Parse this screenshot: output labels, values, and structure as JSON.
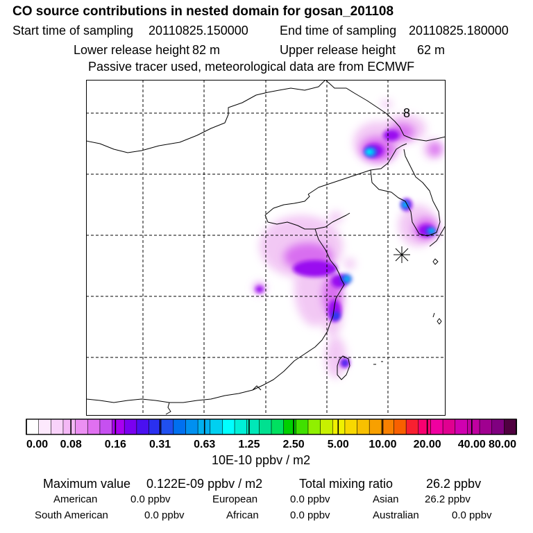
{
  "header": {
    "title": "CO  source contributions in nested domain for gosan_201108",
    "start_label": "Start time of sampling",
    "start_value": "20110825.150000",
    "end_label": "End time of sampling",
    "end_value": "20110825.180000",
    "lower_label": "Lower release height",
    "lower_value": "82 m",
    "upper_label": "Upper release height",
    "upper_value": "62 m",
    "note": "Passive tracer used, meteorological data are from ECMWF"
  },
  "map": {
    "marker_label": "8",
    "station_marker": "asterisk-icon"
  },
  "chart_data": {
    "type": "heatmap",
    "title": "CO  source contributions in nested domain for gosan_201108",
    "colorbar": {
      "ticks": [
        "0.00",
        "0.08",
        "0.16",
        "0.31",
        "0.63",
        "1.25",
        "2.50",
        "5.00",
        "10.00",
        "20.00",
        "40.00",
        "80.00"
      ],
      "units": "10E-10 ppbv / m2",
      "colors": [
        "#ffffff",
        "#fde9fd",
        "#f9d2fa",
        "#f4b8f6",
        "#ec90f3",
        "#e070f0",
        "#c650f0",
        "#a800f0",
        "#7a00f0",
        "#4a10f0",
        "#2a30f0",
        "#2050f0",
        "#0070f0",
        "#0090f0",
        "#00b0f0",
        "#00d0f0",
        "#00ffff",
        "#00f0d8",
        "#00e8b8",
        "#00e090",
        "#00e060",
        "#00d000",
        "#40e000",
        "#90f000",
        "#c8f000",
        "#f0f000",
        "#f8d800",
        "#f8c000",
        "#f8a000",
        "#f88000",
        "#f86000",
        "#f82030",
        "#f80070",
        "#f000a0",
        "#e00090",
        "#d000b0",
        "#c000a0",
        "#a00090",
        "#800080",
        "#500040"
      ]
    },
    "summary": {
      "max_label": "Maximum value",
      "max_value": "0.122E-09 ppbv / m2",
      "total_label": "Total mixing ratio",
      "total_value": "26.2 ppbv"
    },
    "sources": [
      {
        "name": "American",
        "value": "0.0 ppbv"
      },
      {
        "name": "European",
        "value": "0.0 ppbv"
      },
      {
        "name": "Asian",
        "value": "26.2 ppbv"
      },
      {
        "name": "South American",
        "value": "0.0 ppbv"
      },
      {
        "name": "African",
        "value": "0.0 ppbv"
      },
      {
        "name": "Australian",
        "value": "0.0 ppbv"
      }
    ]
  }
}
